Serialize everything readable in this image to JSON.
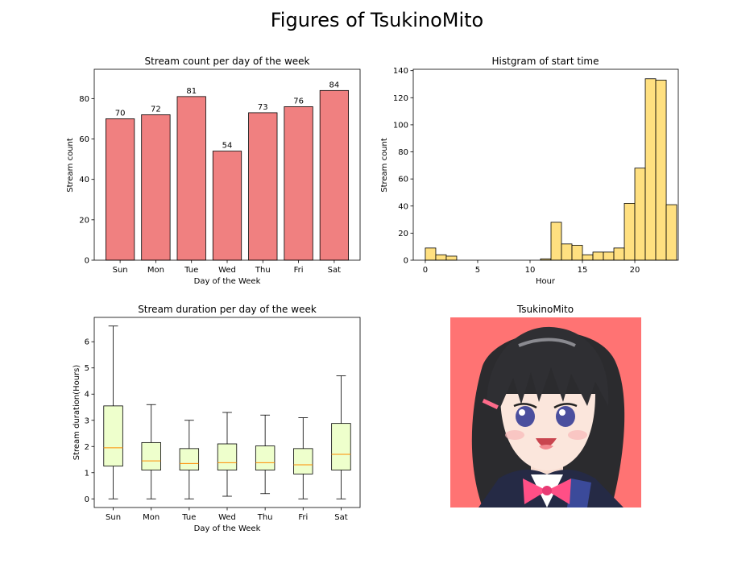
{
  "figure": {
    "title": "Figures of TsukinoMito"
  },
  "chart_data": [
    {
      "type": "bar",
      "title": "Stream count per day of the week",
      "xlabel": "Day of the Week",
      "ylabel": "Stream count",
      "categories": [
        "Sun",
        "Mon",
        "Tue",
        "Wed",
        "Thu",
        "Fri",
        "Sat"
      ],
      "values": [
        70,
        72,
        81,
        54,
        73,
        76,
        84
      ],
      "data_labels": [
        "70",
        "72",
        "81",
        "54",
        "73",
        "76",
        "84"
      ],
      "ylim": [
        0,
        94.5
      ],
      "yticks": [
        0,
        20,
        40,
        60,
        80
      ],
      "color": "#f08080",
      "grid": false
    },
    {
      "type": "histogram",
      "title": "Histgram of start time",
      "xlabel": "Hour",
      "ylabel": "Stream count",
      "bin_start": 0,
      "bin_width": 1,
      "values": [
        9,
        4,
        3,
        0,
        0,
        0,
        0,
        0,
        0,
        0,
        0,
        1,
        28,
        12,
        11,
        4,
        6,
        6,
        9,
        42,
        68,
        134,
        133,
        41
      ],
      "xlim": [
        -1.15,
        24.15
      ],
      "ylim": [
        0,
        141
      ],
      "xticks": [
        0,
        5,
        10,
        15,
        20
      ],
      "yticks": [
        0,
        20,
        40,
        60,
        80,
        100,
        120,
        140
      ],
      "color": "#ffe080",
      "grid": false
    },
    {
      "type": "boxplot",
      "title": "Stream duration per day of the week",
      "xlabel": "Day of the Week",
      "ylabel": "Stream duration(Hours)",
      "categories": [
        "Sun",
        "Mon",
        "Tue",
        "Wed",
        "Thu",
        "Fri",
        "Sat"
      ],
      "boxes": [
        {
          "whislo": 0,
          "q1": 1.25,
          "med": 1.95,
          "q3": 3.55,
          "whishi": 6.6
        },
        {
          "whislo": 0,
          "q1": 1.1,
          "med": 1.45,
          "q3": 2.15,
          "whishi": 3.6
        },
        {
          "whislo": 0,
          "q1": 1.1,
          "med": 1.35,
          "q3": 1.92,
          "whishi": 3.0
        },
        {
          "whislo": 0.1,
          "q1": 1.1,
          "med": 1.38,
          "q3": 2.1,
          "whishi": 3.3
        },
        {
          "whislo": 0.2,
          "q1": 1.1,
          "med": 1.38,
          "q3": 2.02,
          "whishi": 3.2
        },
        {
          "whislo": 0,
          "q1": 0.95,
          "med": 1.3,
          "q3": 1.92,
          "whishi": 3.1
        },
        {
          "whislo": 0,
          "q1": 1.1,
          "med": 1.7,
          "q3": 2.88,
          "whishi": 4.7
        }
      ],
      "ylim": [
        -0.33,
        6.93
      ],
      "yticks": [
        0,
        1,
        2,
        3,
        4,
        5,
        6
      ],
      "box_color": "#eeffcc",
      "median_color": "#ff8c00",
      "grid": false
    }
  ],
  "image_panel": {
    "title": "TsukinoMito",
    "background": "#ff7373",
    "description_icon": "anime-girl-portrait"
  }
}
